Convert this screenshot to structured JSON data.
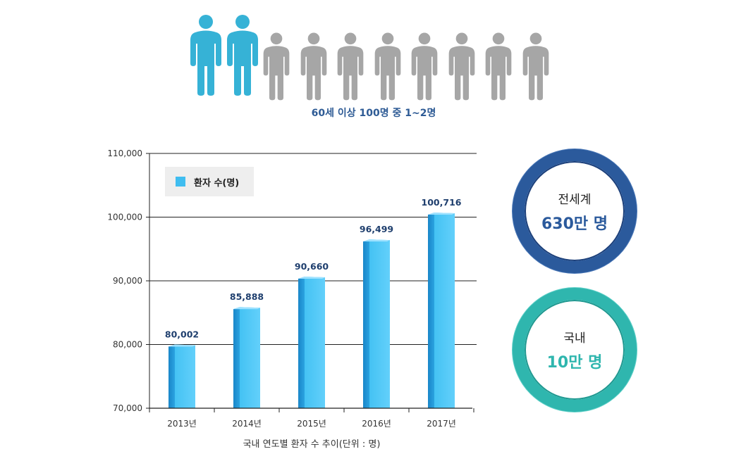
{
  "people": {
    "caption": "60세 이상 100명 중 1~2명",
    "highlight_color": "#36b2d6",
    "base_color": "#a6a6a6",
    "highlighted_count": 2,
    "total_count": 10
  },
  "stats": {
    "world": {
      "title": "전세계",
      "value": "630만 명",
      "color": "#2b5a9c"
    },
    "korea": {
      "title": "국내",
      "value": "10만 명",
      "color": "#2fb6ae"
    }
  },
  "chart_data": {
    "type": "bar",
    "categories": [
      "2013년",
      "2014년",
      "2015년",
      "2016년",
      "2017년"
    ],
    "series": [
      {
        "name": "환자 수(명)",
        "values": [
          80002,
          85888,
          90660,
          96499,
          100716
        ],
        "labels": [
          "80,002",
          "85,888",
          "90,660",
          "96,499",
          "100,716"
        ],
        "color": "#3fbdf0"
      }
    ],
    "title": "",
    "xlabel": "국내 연도별 환자 수 추이(단위 : 명)",
    "ylabel": "",
    "ylim": [
      70000,
      110000
    ],
    "yticks": [
      70000,
      80000,
      90000,
      100000,
      110000
    ],
    "ytick_labels": [
      "70,000",
      "80,000",
      "90,000",
      "100,000",
      "110,000"
    ],
    "grid": true,
    "legend_position": "top-left"
  }
}
